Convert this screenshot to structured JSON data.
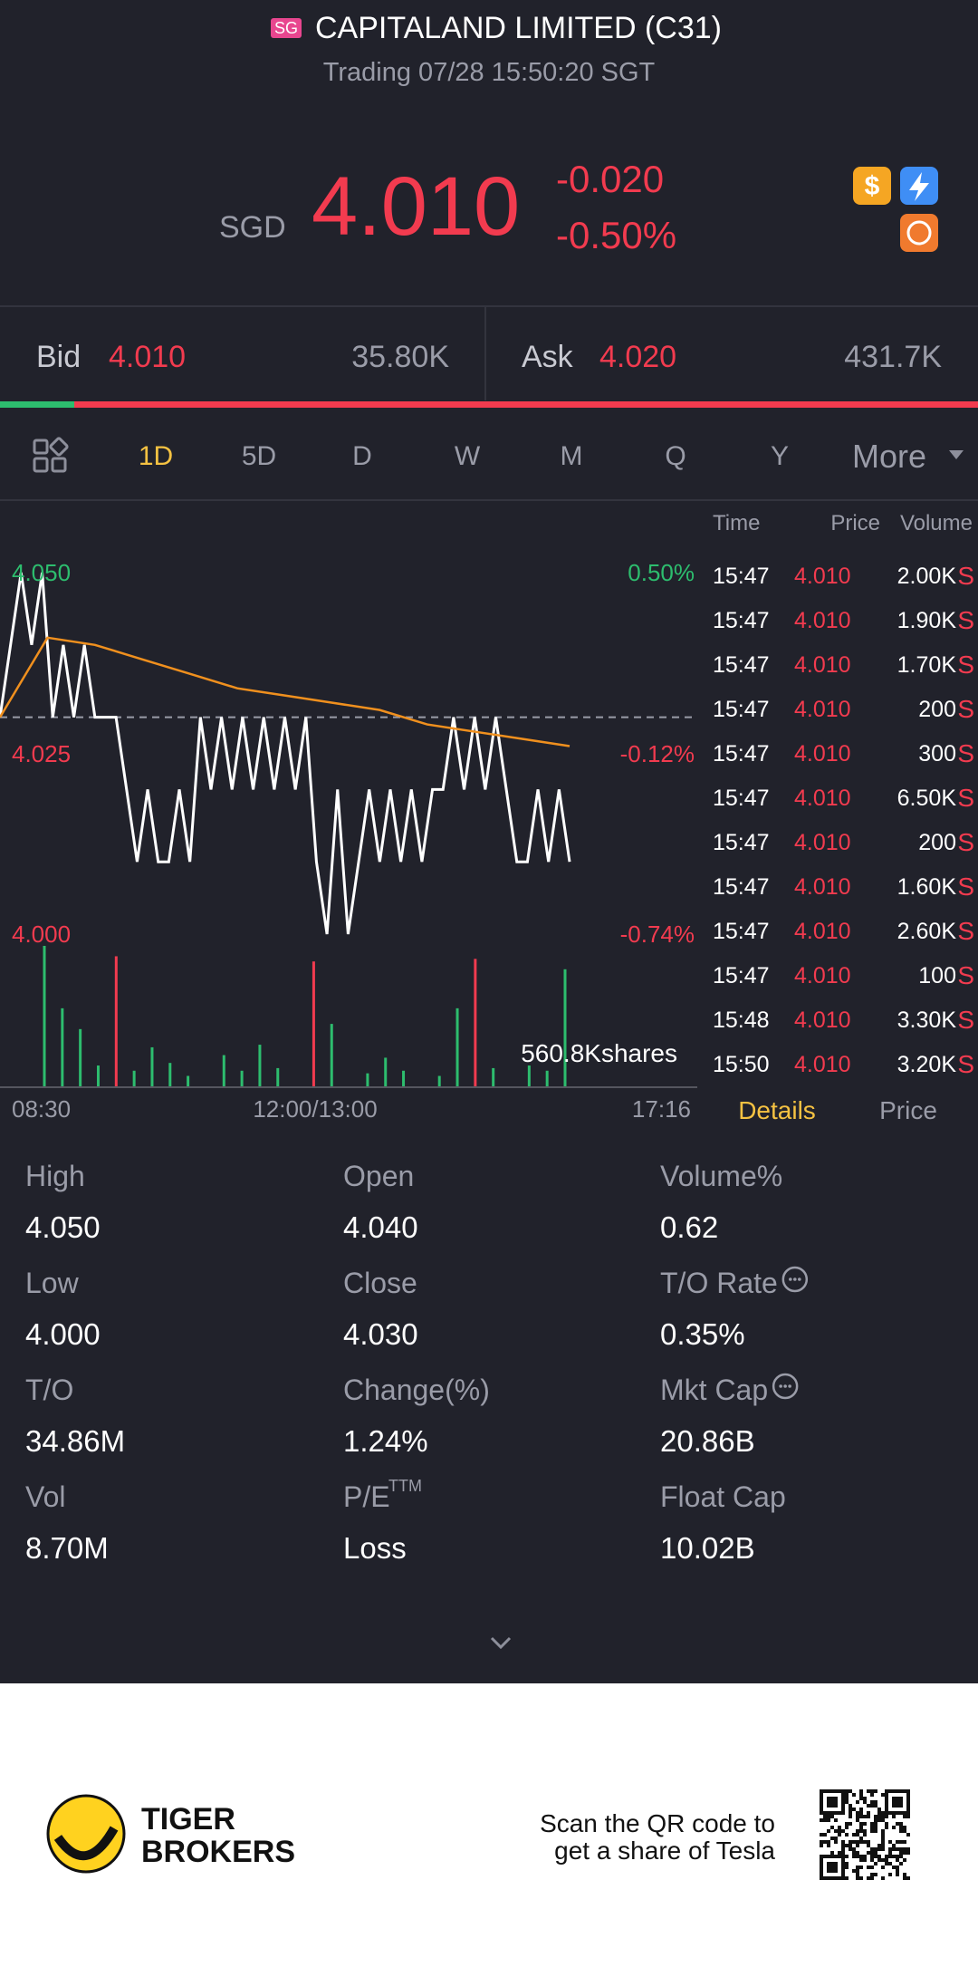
{
  "header": {
    "market_badge": "SG",
    "title": "CAPITALAND LIMITED (C31)",
    "status": "Trading 07/28 15:50:20 SGT"
  },
  "quote": {
    "currency": "SGD",
    "price": "4.010",
    "change": "-0.020",
    "change_pct": "-0.50%"
  },
  "order_book": {
    "bid_label": "Bid",
    "bid_price": "4.010",
    "bid_size": "35.80K",
    "ask_label": "Ask",
    "ask_price": "4.020",
    "ask_size": "431.7K"
  },
  "periods": [
    "1D",
    "5D",
    "D",
    "W",
    "M",
    "Q",
    "Y",
    "More"
  ],
  "chart": {
    "type": "line",
    "ylim": [
      4.0,
      4.05
    ],
    "yticks": [
      {
        "value": 4.05,
        "label": "4.050"
      },
      {
        "value": 4.025,
        "label": "4.025"
      },
      {
        "value": 4.0,
        "label": "4.000"
      }
    ],
    "pct_labels": [
      "0.50%",
      "-0.12%",
      "-0.74%"
    ],
    "reference": 4.03,
    "series": [
      {
        "color": "#ffffff",
        "values": [
          4.03,
          4.04,
          4.05,
          4.04,
          4.05,
          4.03,
          4.04,
          4.03,
          4.04,
          4.03,
          4.03,
          4.03,
          4.02,
          4.01,
          4.02,
          4.01,
          4.01,
          4.02,
          4.01,
          4.03,
          4.02,
          4.03,
          4.02,
          4.03,
          4.02,
          4.03,
          4.02,
          4.03,
          4.02,
          4.03,
          4.01,
          4.0,
          4.02,
          4.0,
          4.01,
          4.02,
          4.01,
          4.02,
          4.01,
          4.02,
          4.01,
          4.02,
          4.02,
          4.03,
          4.02,
          4.03,
          4.02,
          4.03,
          4.02,
          4.01,
          4.01,
          4.02,
          4.01,
          4.02,
          4.01
        ]
      },
      {
        "color": "#f0901e",
        "values": [
          4.03,
          4.041,
          4.04,
          4.038,
          4.036,
          4.034,
          4.033,
          4.032,
          4.031,
          4.029,
          4.028,
          4.027,
          4.026
        ]
      }
    ],
    "volume": {
      "label": "560.8Kshares",
      "ylim": [
        0,
        560.8
      ],
      "series": [
        {
          "color": "#2dbd6e",
          "values": [
            540,
            300,
            220,
            80,
            null,
            60,
            150,
            90,
            40,
            null,
            120,
            60,
            160,
            70,
            null,
            null,
            240,
            null,
            50,
            110,
            60,
            null,
            40,
            300,
            null,
            70,
            null,
            80,
            60,
            450
          ]
        },
        {
          "color": "#f23b4f",
          "values": [
            null,
            null,
            null,
            null,
            500,
            null,
            null,
            null,
            null,
            null,
            null,
            null,
            null,
            null,
            null,
            480,
            null,
            null,
            null,
            null,
            null,
            null,
            null,
            null,
            490,
            null,
            null,
            null,
            null,
            null
          ]
        }
      ]
    },
    "xlabels": [
      "08:30",
      "12:00/13:00",
      "17:16"
    ]
  },
  "trades": {
    "headers": [
      "Time",
      "Price",
      "Volume"
    ],
    "rows": [
      [
        "15:47",
        "4.010",
        "2.00K",
        "S"
      ],
      [
        "15:47",
        "4.010",
        "1.90K",
        "S"
      ],
      [
        "15:47",
        "4.010",
        "1.70K",
        "S"
      ],
      [
        "15:47",
        "4.010",
        "200",
        "S"
      ],
      [
        "15:47",
        "4.010",
        "300",
        "S"
      ],
      [
        "15:47",
        "4.010",
        "6.50K",
        "S"
      ],
      [
        "15:47",
        "4.010",
        "200",
        "S"
      ],
      [
        "15:47",
        "4.010",
        "1.60K",
        "S"
      ],
      [
        "15:47",
        "4.010",
        "2.60K",
        "S"
      ],
      [
        "15:47",
        "4.010",
        "100",
        "S"
      ],
      [
        "15:48",
        "4.010",
        "3.30K",
        "S"
      ],
      [
        "15:50",
        "4.010",
        "3.20K",
        "S"
      ]
    ]
  },
  "tabs": [
    "Details",
    "Price"
  ],
  "stats": [
    {
      "label": "High",
      "value": "4.050"
    },
    {
      "label": "Open",
      "value": "4.040"
    },
    {
      "label": "Volume%",
      "value": "0.62"
    },
    {
      "label": "Low",
      "value": "4.000"
    },
    {
      "label": "Close",
      "value": "4.030"
    },
    {
      "label": "T/O Rate",
      "value": "0.35%",
      "info": true
    },
    {
      "label": "T/O",
      "value": "34.86M"
    },
    {
      "label": "Change(%)",
      "value": "1.24%"
    },
    {
      "label": "Mkt Cap",
      "value": "20.86B",
      "info": true
    },
    {
      "label": "Vol",
      "value": "8.70M"
    },
    {
      "label": "P/E",
      "sup": "TTM",
      "value": "Loss"
    },
    {
      "label": "Float Cap",
      "value": "10.02B"
    }
  ],
  "footer": {
    "brand": [
      "TIGER",
      "BROKERS"
    ],
    "promo": [
      "Scan the QR code to",
      "get a share of Tesla"
    ]
  }
}
